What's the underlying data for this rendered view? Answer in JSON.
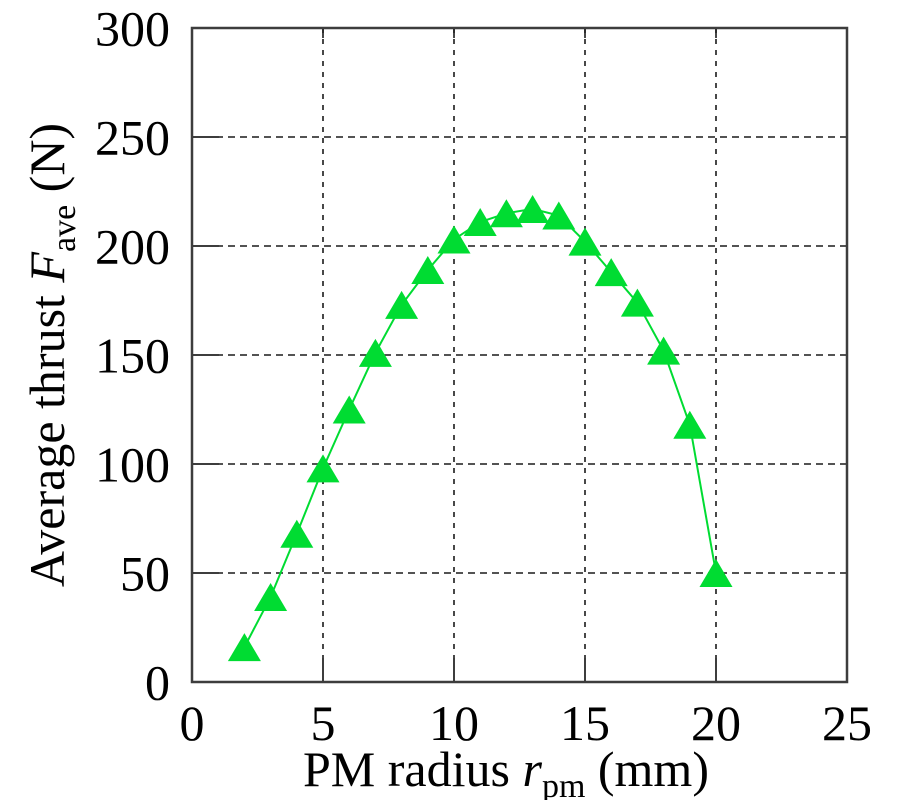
{
  "chart_data": {
    "type": "line",
    "title": "",
    "xlabel": {
      "prefix": "PM radius ",
      "var": "r",
      "sub": "pm",
      "suffix": " (mm)"
    },
    "ylabel": {
      "prefix": "Average thrust ",
      "var": "F",
      "sub": "ave",
      "suffix": " (N)"
    },
    "x": [
      2,
      3,
      4,
      5,
      6,
      7,
      8,
      9,
      10,
      11,
      12,
      13,
      14,
      15,
      16,
      17,
      18,
      19,
      20
    ],
    "y": [
      16,
      39,
      68,
      98,
      125,
      151,
      173,
      189,
      203,
      211,
      215,
      217,
      214,
      202,
      188,
      174,
      152,
      118,
      50
    ],
    "xlim": [
      0,
      25
    ],
    "ylim": [
      0,
      300
    ],
    "xticks": [
      0,
      5,
      10,
      15,
      20,
      25
    ],
    "yticks": [
      0,
      50,
      100,
      150,
      200,
      250,
      300
    ],
    "grid": true,
    "legend": "none",
    "marker": "triangle-up",
    "series_name": "average-thrust",
    "series_color": "#00DC32",
    "grid_color": "#1a1a1a",
    "border_color": "#3d3d3d"
  }
}
